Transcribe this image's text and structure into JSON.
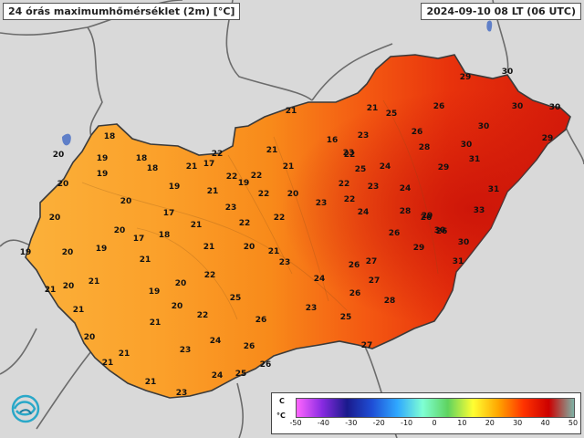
{
  "map": {
    "title": "24 órás maximumhőmérséklet (2m) [°C]",
    "timestamp": "2024-09-10 08 LT (06 UTC)",
    "region": "Hungary",
    "station_values": [
      "20",
      "18",
      "19",
      "18",
      "18",
      "21",
      "17",
      "22",
      "19",
      "20",
      "20",
      "17",
      "19",
      "22",
      "22",
      "21",
      "20",
      "21",
      "19",
      "20",
      "19",
      "17",
      "18",
      "21",
      "20",
      "22",
      "21",
      "23",
      "22",
      "21",
      "16",
      "23",
      "22",
      "23",
      "22",
      "21",
      "22",
      "21",
      "20",
      "23",
      "21",
      "25",
      "22",
      "23",
      "24",
      "23",
      "26",
      "24",
      "24",
      "26",
      "26",
      "28",
      "28",
      "26",
      "25",
      "26",
      "29",
      "30",
      "29",
      "29",
      "30",
      "30",
      "30",
      "31",
      "31",
      "33",
      "30",
      "31",
      "29",
      "30",
      "29",
      "30",
      "28",
      "27",
      "27",
      "26",
      "25",
      "26",
      "26",
      "24",
      "23",
      "22",
      "24",
      "25",
      "27",
      "26",
      "25",
      "24",
      "26",
      "23",
      "23",
      "21",
      "21",
      "21",
      "21",
      "20",
      "21",
      "20",
      "21",
      "21",
      "21",
      "20",
      "22",
      "19",
      "20",
      "19",
      "20"
    ]
  },
  "legend": {
    "unit": "°C",
    "min_label": "C",
    "ticks": [
      "-50",
      "-40",
      "-30",
      "-20",
      "-10",
      "0",
      "10",
      "20",
      "30",
      "40",
      "50"
    ],
    "colors": [
      "#ff66ff",
      "#8a2be2",
      "#1a1a8c",
      "#1f4fd6",
      "#2fa8ff",
      "#7fffd4",
      "#5fd35f",
      "#ffff33",
      "#ffa500",
      "#ff3300",
      "#cc0000",
      "#7fb3a6"
    ]
  },
  "logo": {
    "name": "weather-service-logo-icon"
  }
}
